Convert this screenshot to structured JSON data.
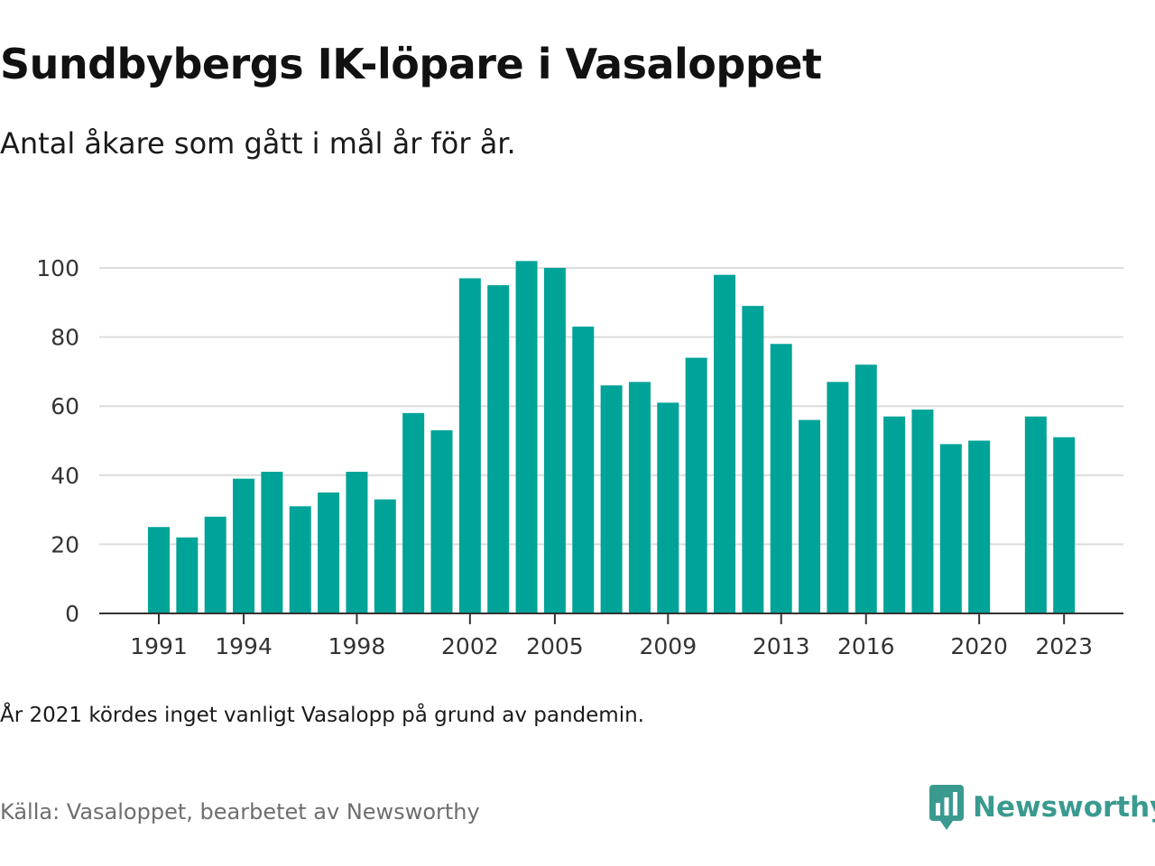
{
  "header": {
    "title": "Sundbybergs IK-löpare i Vasaloppet",
    "subtitle": "Antal åkare som gått i mål år för år."
  },
  "footer": {
    "note": "År 2021 kördes inget vanligt Vasalopp på grund av pandemin.",
    "source": "Källa: Vasaloppet, bearbetet av Newsworthy",
    "logo_text": "Newsworthy",
    "logo_icon": "newsworthy-chart-icon"
  },
  "colors": {
    "bar": "#00a398",
    "grid": "#dcdcdc",
    "axis": "#333333",
    "tick_text": "#333333",
    "logo": "#3a9a8f"
  },
  "chart_data": {
    "type": "bar",
    "title": "Sundbybergs IK-löpare i Vasaloppet",
    "subtitle": "Antal åkare som gått i mål år för år.",
    "xlabel": "",
    "ylabel": "",
    "ylim": [
      0,
      100
    ],
    "yticks": [
      0,
      20,
      40,
      60,
      80,
      100
    ],
    "grid": true,
    "legend": "none",
    "x": [
      1991,
      1992,
      1993,
      1994,
      1995,
      1996,
      1997,
      1998,
      1999,
      2000,
      2001,
      2002,
      2003,
      2004,
      2005,
      2006,
      2007,
      2008,
      2009,
      2010,
      2011,
      2012,
      2013,
      2014,
      2015,
      2016,
      2017,
      2018,
      2019,
      2020,
      2021,
      2022,
      2023
    ],
    "values": [
      25,
      22,
      28,
      39,
      41,
      31,
      35,
      41,
      33,
      58,
      53,
      97,
      95,
      102,
      100,
      83,
      66,
      67,
      61,
      74,
      98,
      89,
      78,
      56,
      67,
      72,
      57,
      59,
      49,
      50,
      null,
      57,
      51
    ],
    "xtick_labels": [
      "1991",
      "1994",
      "1998",
      "2002",
      "2005",
      "2009",
      "2013",
      "2016",
      "2020",
      "2023"
    ]
  }
}
